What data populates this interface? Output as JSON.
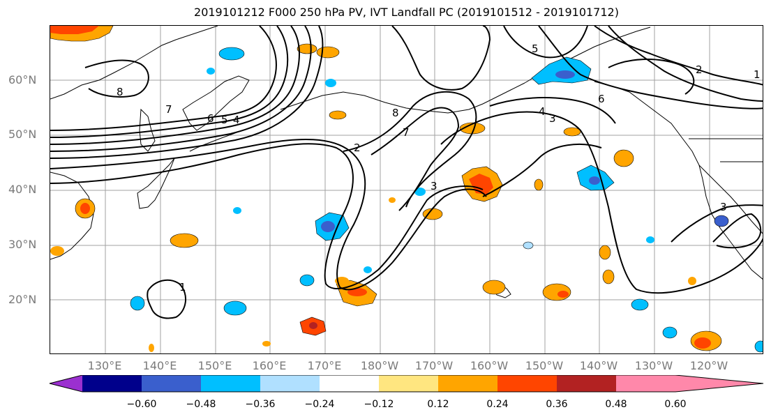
{
  "title": "2019101212 F000 250 hPa PV, IVT Landfall PC (2019101512 - 2019101712)",
  "lat_labels": [
    "60°N",
    "50°N",
    "40°N",
    "30°N",
    "20°N"
  ],
  "lon_labels": [
    "130°E",
    "140°E",
    "150°E",
    "160°E",
    "170°E",
    "180°W",
    "170°W",
    "160°W",
    "150°W",
    "140°W",
    "130°W",
    "120°W"
  ],
  "colorbar": {
    "ticks": [
      "−0.60",
      "−0.48",
      "−0.36",
      "−0.24",
      "−0.12",
      "0.12",
      "0.24",
      "0.36",
      "0.48",
      "0.60"
    ],
    "colors": [
      "#9b30d0",
      "#00008b",
      "#3a5fcd",
      "#00bfff",
      "#b0e0ff",
      "#ffffff",
      "#ffe680",
      "#ffa500",
      "#ff4500",
      "#b22222",
      "#ff88aa"
    ]
  },
  "contour_labels": [
    "1",
    "8",
    "7",
    "6",
    "5",
    "4",
    "3",
    "2",
    "7",
    "8",
    "5",
    "6",
    "4",
    "3",
    "2",
    "3",
    "1"
  ],
  "colors": {
    "pos_low": "#ffe680",
    "pos_mid": "#ffa500",
    "pos_high": "#ff4500",
    "pos_max": "#b22222",
    "neg_low": "#b0e0ff",
    "neg_mid": "#00bfff",
    "neg_high": "#3a5fcd",
    "neg_max": "#00008b"
  }
}
